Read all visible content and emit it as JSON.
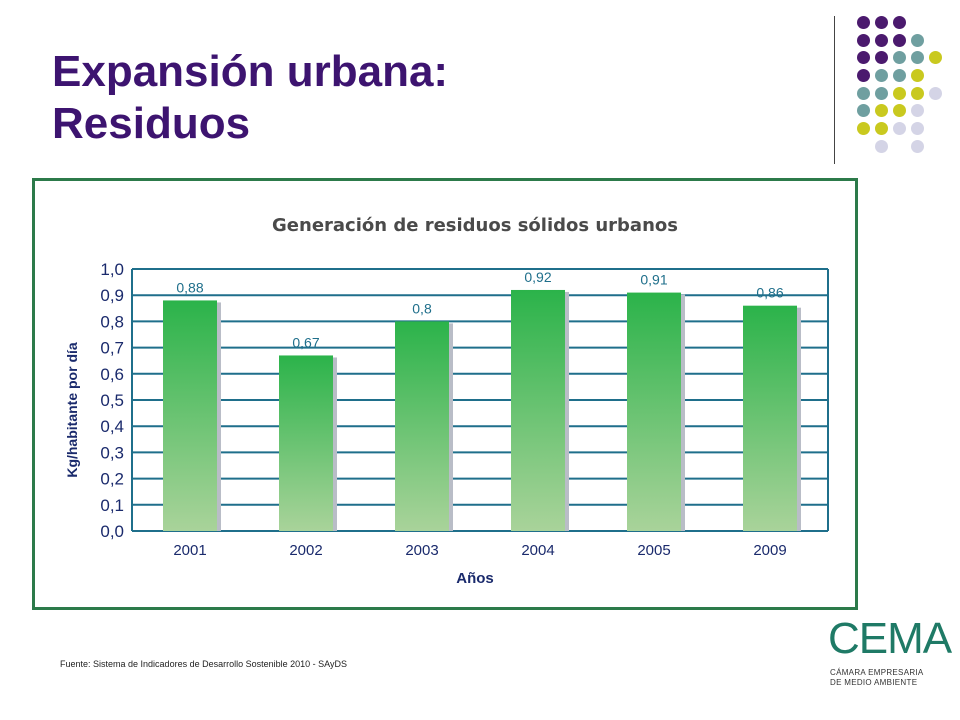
{
  "slide": {
    "title_line1": "Expansión urbana:",
    "title_line2": "Residuos",
    "source": "Fuente: Sistema de Indicadores de Desarrollo Sostenible 2010 - SAyDS"
  },
  "logo": {
    "brand": "CEMA",
    "sub_line1": "CÁMARA EMPRESARIA",
    "sub_line2": "DE MEDIO AMBIENTE"
  },
  "colors": {
    "title": "#3d1470",
    "frame": "#2c7a4a",
    "grid": "#1f6f8b",
    "axis_text": "#1a2a6c",
    "bar_top": "#2bb34a",
    "bar_bottom": "#a9d39a",
    "bar_shadow": "#b9bdc7",
    "dot_purple": "#4b1a6e",
    "dot_teal": "#6f9fa0",
    "dot_lime": "#c9c91f",
    "dot_lavender": "#d4d4e6"
  },
  "chart_data": {
    "type": "bar",
    "title": "Generación de residuos sólidos urbanos",
    "xlabel": "Años",
    "ylabel": "Kg/habitante por día",
    "categories": [
      "2001",
      "2002",
      "2003",
      "2004",
      "2005",
      "2009"
    ],
    "values": [
      0.88,
      0.67,
      0.8,
      0.92,
      0.91,
      0.86
    ],
    "data_labels": [
      "0,88",
      "0,67",
      "0,8",
      "0,92",
      "0,91",
      "0,86"
    ],
    "ylim": [
      0,
      1
    ],
    "yticks": [
      "0,0",
      "0,1",
      "0,2",
      "0,3",
      "0,4",
      "0,5",
      "0,6",
      "0,7",
      "0,8",
      "0,9",
      "1,0"
    ],
    "grid": true,
    "legend": "none"
  }
}
